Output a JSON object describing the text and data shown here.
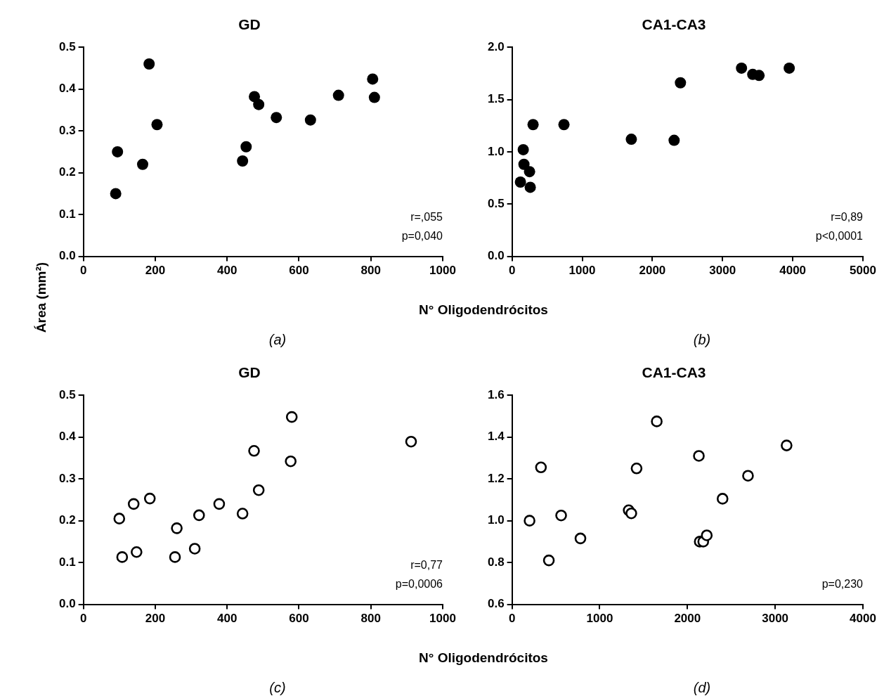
{
  "chart_data": [
    {
      "type": "scatter",
      "title": "GD",
      "xlabel": "N° Oligodendrócitos",
      "ylabel": "Área (mm²)",
      "annotations": [
        "r=,055",
        "p=0,040",
        "(a)"
      ],
      "marker": "circle",
      "grid": false,
      "legend": false,
      "xlim": [
        0,
        1000
      ],
      "xticks": [
        0,
        200,
        400,
        600,
        800,
        1000
      ],
      "ylim": [
        0,
        0.5
      ],
      "yticks": [
        {
          "value": 0,
          "label": "0.0"
        },
        0.1,
        0.2,
        0.3,
        0.4,
        0.5
      ],
      "series": [
        {
          "color": "#000000",
          "x": [
            90,
            95,
            165,
            183,
            205,
            443,
            453,
            476,
            488,
            537,
            632,
            710,
            805,
            810
          ],
          "values": [
            0.15,
            0.25,
            0.22,
            0.46,
            0.315,
            0.228,
            0.262,
            0.382,
            0.363,
            0.332,
            0.326,
            0.385,
            0.424,
            0.38
          ]
        }
      ]
    },
    {
      "type": "scatter",
      "title": "CA1-CA3",
      "annotations": [
        "r=0,89",
        "p<0,0001",
        "(b)"
      ],
      "marker": "circle",
      "grid": false,
      "legend": false,
      "xlim": [
        0,
        5000
      ],
      "xticks": [
        0,
        1000,
        2000,
        3000,
        4000,
        5000
      ],
      "ylim": [
        0,
        2
      ],
      "yticks": [
        {
          "value": 0,
          "label": "0.0"
        },
        0.5,
        {
          "value": 1,
          "label": "1.0"
        },
        1.5,
        {
          "value": 2,
          "label": "2.0"
        }
      ],
      "series": [
        {
          "color": "#000000",
          "x": [
            120,
            160,
            170,
            250,
            260,
            300,
            740,
            1700,
            2310,
            2400,
            3270,
            3430,
            3520,
            3950
          ],
          "values": [
            0.71,
            1.02,
            0.88,
            0.81,
            0.66,
            1.26,
            1.26,
            1.12,
            1.11,
            1.66,
            1.8,
            1.74,
            1.73,
            1.8
          ]
        }
      ]
    },
    {
      "type": "scatter",
      "title": "GD",
      "xlabel": "N° Oligodendrócitos",
      "annotations": [
        "r=0,77",
        "p=0,0006",
        "(c)"
      ],
      "marker": "circle",
      "grid": false,
      "legend": false,
      "xlim": [
        0,
        1000
      ],
      "xticks": [
        0,
        200,
        400,
        600,
        800,
        1000
      ],
      "ylim": [
        0,
        0.5
      ],
      "yticks": [
        {
          "value": 0,
          "label": "0.0"
        },
        0.1,
        0.2,
        0.3,
        0.4,
        0.5
      ],
      "series": [
        {
          "color": "#000000",
          "x": [
            100,
            108,
            140,
            148,
            185,
            255,
            260,
            310,
            322,
            378,
            443,
            475,
            488,
            577,
            580,
            912
          ],
          "values": [
            0.205,
            0.113,
            0.24,
            0.125,
            0.253,
            0.113,
            0.182,
            0.133,
            0.213,
            0.24,
            0.217,
            0.367,
            0.273,
            0.342,
            0.448,
            0.389
          ]
        }
      ]
    },
    {
      "type": "scatter",
      "title": "CA1-CA3",
      "annotations": [
        "p=0,230",
        "(d)"
      ],
      "marker": "circle",
      "grid": false,
      "legend": false,
      "xlim": [
        0,
        4000
      ],
      "xticks": [
        0,
        1000,
        2000,
        3000,
        4000
      ],
      "ylim": [
        0.6,
        1.6
      ],
      "yticks": [
        0.6,
        0.8,
        {
          "value": 1,
          "label": "1.0"
        },
        1.2,
        1.4,
        1.6
      ],
      "series": [
        {
          "color": "#000000",
          "x": [
            200,
            330,
            420,
            560,
            780,
            1330,
            1360,
            1420,
            1650,
            2130,
            2140,
            2180,
            2220,
            2400,
            2690,
            3130
          ],
          "values": [
            1.0,
            1.255,
            0.81,
            1.025,
            0.915,
            1.05,
            1.035,
            1.25,
            1.475,
            1.31,
            0.9,
            0.9,
            0.93,
            1.105,
            1.215,
            1.36
          ]
        }
      ]
    }
  ]
}
